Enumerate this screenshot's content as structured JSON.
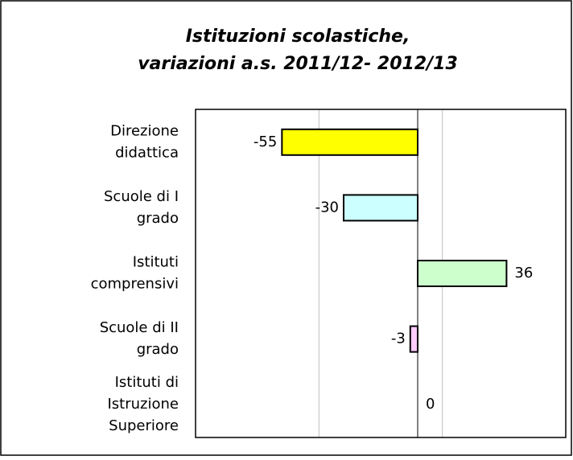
{
  "chart_data": {
    "type": "hbar",
    "title": [
      "Istituzioni scolastiche,",
      "variazioni a.s. 2011/12- 2012/13"
    ],
    "categories": [
      "Direzione\ndidattica",
      "Scuole di I\ngrado",
      "Istituti\ncomprensivi",
      "Scuole di II\ngrado",
      "Istituti di\nIstruzione\nSuperiore"
    ],
    "values": [
      -55,
      -30,
      36,
      -3,
      0
    ],
    "colors": [
      "#ffff00",
      "#ccffff",
      "#ccffcc",
      "#ffccff",
      "#ffcc99"
    ],
    "xlim": [
      -90,
      60
    ],
    "xticks": [
      -90,
      -40,
      10,
      60
    ],
    "grid": true
  }
}
